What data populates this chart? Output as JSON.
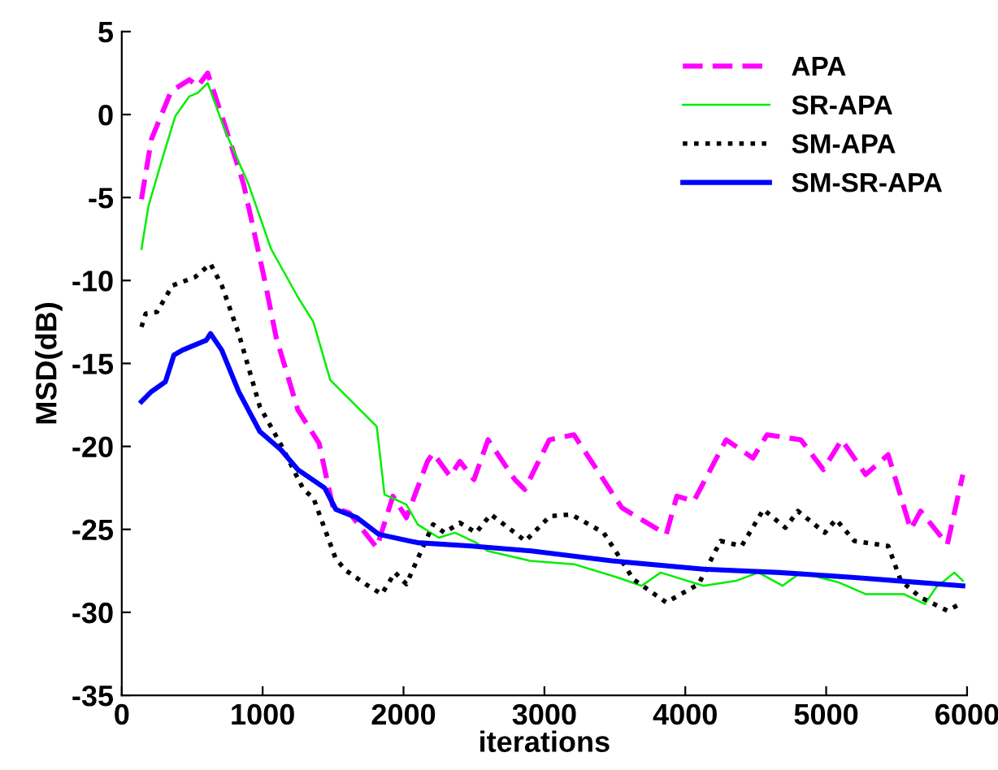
{
  "chart_data": {
    "type": "line",
    "xlabel": "iterations",
    "ylabel": "MSD(dB)",
    "xlim": [
      0,
      6000
    ],
    "xticks": [
      0,
      1000,
      2000,
      3000,
      4000,
      5000,
      6000
    ],
    "ylim": [
      -35,
      5
    ],
    "yticks": [
      -35,
      -30,
      -25,
      -20,
      -15,
      -10,
      -5,
      0,
      5
    ],
    "grid": false,
    "legend": "top right",
    "marker": "none",
    "series": [
      {
        "name": "APA",
        "color": "#ff00ff",
        "line_style": "dashed",
        "x": [
          140,
          210,
          350,
          480,
          540,
          610,
          730,
          865,
          1015,
          1095,
          1250,
          1400,
          1500,
          1615,
          1810,
          1925,
          2020,
          2170,
          2210,
          2330,
          2400,
          2500,
          2600,
          2790,
          2860,
          3035,
          3210,
          3550,
          3865,
          3940,
          4060,
          4290,
          4480,
          4580,
          4820,
          4980,
          5110,
          5280,
          5440,
          5600,
          5670,
          5860,
          5970
        ],
        "values": [
          -5.1,
          -1.5,
          1.4,
          2.1,
          1.7,
          2.5,
          -0.6,
          -4.2,
          -10,
          -13.4,
          -17.8,
          -19.8,
          -23.7,
          -24,
          -26.1,
          -23,
          -24.3,
          -20.9,
          -20.4,
          -21.8,
          -20.9,
          -22,
          -19.6,
          -22,
          -22.6,
          -19.6,
          -19.3,
          -23.7,
          -25.3,
          -23,
          -23.3,
          -19.6,
          -20.7,
          -19.3,
          -19.6,
          -21.4,
          -19.6,
          -21.7,
          -20.5,
          -25,
          -23.9,
          -25.9,
          -21.7
        ]
      },
      {
        "name": "SR-APA",
        "color": "#00ee00",
        "line_style": "solid",
        "x": [
          140,
          190,
          290,
          380,
          480,
          540,
          610,
          730,
          900,
          1060,
          1250,
          1360,
          1480,
          1810,
          1865,
          2020,
          2100,
          2250,
          2365,
          2515,
          2595,
          2900,
          3210,
          3520,
          3690,
          3825,
          4130,
          4360,
          4520,
          4690,
          4820,
          5090,
          5280,
          5550,
          5700,
          5780,
          5910,
          5970
        ],
        "values": [
          -8.1,
          -5.5,
          -2.6,
          -0.1,
          1.1,
          1.3,
          1.9,
          -0.9,
          -4.2,
          -8.1,
          -11,
          -12.5,
          -16,
          -18.8,
          -22.9,
          -23.5,
          -24.7,
          -25.5,
          -25.2,
          -25.8,
          -26.3,
          -26.9,
          -27.1,
          -27.9,
          -28.4,
          -27.6,
          -28.4,
          -28.1,
          -27.6,
          -28.4,
          -27.6,
          -28.2,
          -28.9,
          -28.9,
          -29.5,
          -28.5,
          -27.6,
          -28.1
        ]
      },
      {
        "name": "SM-APA",
        "color": "#000000",
        "line_style": "dotted",
        "x": [
          140,
          170,
          250,
          360,
          520,
          630,
          710,
          830,
          980,
          1130,
          1290,
          1360,
          1520,
          1595,
          1730,
          1845,
          1940,
          2020,
          2210,
          2290,
          2400,
          2515,
          2620,
          2790,
          2865,
          3040,
          3190,
          3420,
          3535,
          3630,
          3865,
          4095,
          4250,
          4400,
          4555,
          4710,
          4800,
          4990,
          5070,
          5200,
          5440,
          5530,
          5670,
          5860,
          5950
        ],
        "values": [
          -12.8,
          -12,
          -11.9,
          -10.3,
          -9.8,
          -9,
          -10.3,
          -13.2,
          -17.6,
          -19.9,
          -22.6,
          -23.1,
          -26.8,
          -27.5,
          -28.3,
          -28.9,
          -27.6,
          -28.3,
          -24.7,
          -25.2,
          -24.6,
          -25.2,
          -24.1,
          -25.2,
          -25.7,
          -24.2,
          -24.1,
          -25.2,
          -26.7,
          -28,
          -29.4,
          -28.3,
          -25.7,
          -26,
          -23.8,
          -24.9,
          -23.9,
          -25.2,
          -24.4,
          -25.7,
          -26,
          -28.1,
          -29.1,
          -29.9,
          -29.5
        ]
      },
      {
        "name": "SM-SR-APA",
        "color": "#0000ff",
        "line_style": "solid",
        "x": [
          140,
          210,
          310,
          370,
          430,
          600,
          630,
          710,
          830,
          980,
          1130,
          1250,
          1440,
          1520,
          1670,
          1825,
          2100,
          2480,
          2905,
          3480,
          4130,
          4670,
          5200,
          5510,
          5970
        ],
        "values": [
          -17.3,
          -16.7,
          -16.1,
          -14.5,
          -14.2,
          -13.6,
          -13.2,
          -14.2,
          -16.7,
          -19.1,
          -20.2,
          -21.4,
          -22.5,
          -23.8,
          -24.3,
          -25.3,
          -25.8,
          -26,
          -26.3,
          -26.9,
          -27.4,
          -27.6,
          -27.9,
          -28.1,
          -28.4
        ]
      }
    ]
  }
}
